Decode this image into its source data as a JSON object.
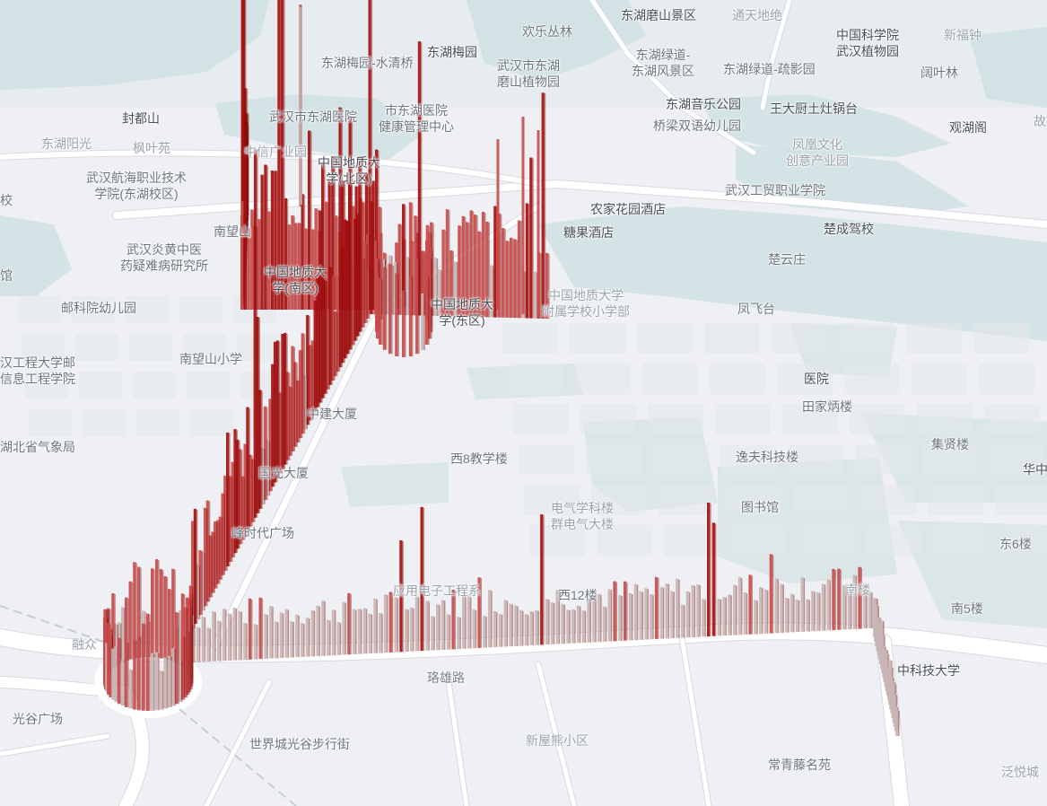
{
  "map": {
    "theme": {
      "land": "#eef0f3",
      "water": "#cfe0e2",
      "green": "#d8e6e4",
      "block": "#e3e7ec",
      "road": "#ffffff",
      "road_edge": "#d6dbe1",
      "bar_dark": "#a80f0f",
      "bar_mid": "#c94a4a",
      "bar_light": "#c8b6b6"
    },
    "labels": [
      {
        "id": "donghu-moshan",
        "text": "东湖磨山景区",
        "style": "dark"
      },
      {
        "id": "tongtian",
        "text": "通天地绝",
        "style": "light"
      },
      {
        "id": "huanle",
        "text": "欢乐丛林",
        "style": "normal"
      },
      {
        "id": "kexueyuan",
        "text": "中国科学院\n武汉植物园",
        "style": "dark"
      },
      {
        "id": "xinfu",
        "text": "新福钟",
        "style": "light"
      },
      {
        "id": "donghu-meiyuan",
        "text": "东湖梅园",
        "style": "dark"
      },
      {
        "id": "meiyuan-shuiqing",
        "text": "东湖梅园-水清桥",
        "style": "normal"
      },
      {
        "id": "moshan-zhiwu",
        "text": "武汉市东湖\n磨山植物园",
        "style": "normal"
      },
      {
        "id": "lvdao-fengjing",
        "text": "东湖绿道-\n东湖风景区",
        "style": "normal"
      },
      {
        "id": "lvdao-shuying",
        "text": "东湖绿道-疏影园",
        "style": "normal"
      },
      {
        "id": "kuoye",
        "text": "阔叶林",
        "style": "normal"
      },
      {
        "id": "fengdushan",
        "text": "封都山",
        "style": "dark"
      },
      {
        "id": "donghu-hospital",
        "text": "武汉市东湖医院",
        "style": "normal"
      },
      {
        "id": "jiankang",
        "text": "市东湖医院\n健康管理中心",
        "style": "normal"
      },
      {
        "id": "yinyue",
        "text": "东湖音乐公园",
        "style": "dark"
      },
      {
        "id": "wangdachu",
        "text": "王大厨土灶锅台",
        "style": "dark"
      },
      {
        "id": "guanhu",
        "text": "观湖阁",
        "style": "dark"
      },
      {
        "id": "gu",
        "text": "故",
        "style": "light"
      },
      {
        "id": "qiaoliang",
        "text": "桥梁双语幼儿园",
        "style": "normal"
      },
      {
        "id": "yangguang",
        "text": "东湖阳光",
        "style": "light"
      },
      {
        "id": "fengye",
        "text": "枫叶苑",
        "style": "light"
      },
      {
        "id": "zhongxin",
        "text": "中信广业园",
        "style": "light"
      },
      {
        "id": "dizhi-north",
        "text": "中国地质大\n学(北区)",
        "style": "dark"
      },
      {
        "id": "fenghuang",
        "text": "凤凰文化\n创意产业园",
        "style": "light"
      },
      {
        "id": "hanghai",
        "text": "武汉航海职业技术\n学院(东湖校区)",
        "style": "normal"
      },
      {
        "id": "xiao",
        "text": "校",
        "style": "normal"
      },
      {
        "id": "gongmao",
        "text": "武汉工贸职业学院",
        "style": "normal"
      },
      {
        "id": "nongjia",
        "text": "农家花园酒店",
        "style": "dark"
      },
      {
        "id": "nanwang-top",
        "text": "南望山",
        "style": "normal"
      },
      {
        "id": "tangguo",
        "text": "糖果酒店",
        "style": "dark"
      },
      {
        "id": "chucheng",
        "text": "楚成驾校",
        "style": "dark"
      },
      {
        "id": "yanhuang",
        "text": "武汉炎黄中医\n药疑难病研究所",
        "style": "normal"
      },
      {
        "id": "guan",
        "text": "馆",
        "style": "normal"
      },
      {
        "id": "chuyun",
        "text": "楚云庄",
        "style": "normal"
      },
      {
        "id": "dizhi-south",
        "text": "中国地质大\n学(南区)",
        "style": "dark"
      },
      {
        "id": "dizhi-east",
        "text": "中国地质大\n学(东区)",
        "style": "dark"
      },
      {
        "id": "dizhi-fushu",
        "text": "中国地质大学\n附属学校小学部",
        "style": "light"
      },
      {
        "id": "youke",
        "text": "邮科院幼儿园",
        "style": "normal"
      },
      {
        "id": "fengfei",
        "text": "凤飞台",
        "style": "normal"
      },
      {
        "id": "nanwang-xiaoxue",
        "text": "南望山小学",
        "style": "normal"
      },
      {
        "id": "hg-youdian",
        "text": "汉工程大学邮\n信息工程学院",
        "style": "normal"
      },
      {
        "id": "yiyuan",
        "text": "医院",
        "style": "dark"
      },
      {
        "id": "tianjia",
        "text": "田家炳楼",
        "style": "normal"
      },
      {
        "id": "zhongjian",
        "text": "中建大厦",
        "style": "normal"
      },
      {
        "id": "qixiang",
        "text": "湖北省气象局",
        "style": "normal"
      },
      {
        "id": "jixian",
        "text": "集贤楼",
        "style": "normal"
      },
      {
        "id": "xi8",
        "text": "西8教学楼",
        "style": "normal"
      },
      {
        "id": "yifu",
        "text": "逸夫科技楼",
        "style": "normal"
      },
      {
        "id": "hua",
        "text": "华中",
        "style": "dark"
      },
      {
        "id": "guoguang",
        "text": "国光大厦",
        "style": "normal"
      },
      {
        "id": "dianqi",
        "text": "电气学科楼\n群电气大楼",
        "style": "light"
      },
      {
        "id": "tushu",
        "text": "图书馆",
        "style": "normal"
      },
      {
        "id": "shidai",
        "text": "峰时代广场",
        "style": "normal"
      },
      {
        "id": "dong6",
        "text": "东6楼",
        "style": "normal"
      },
      {
        "id": "yingyong",
        "text": "应用电子工程系",
        "style": "light"
      },
      {
        "id": "xi12",
        "text": "西12楼",
        "style": "normal"
      },
      {
        "id": "nanji",
        "text": "南楼",
        "style": "light"
      },
      {
        "id": "nan5",
        "text": "南5楼",
        "style": "normal"
      },
      {
        "id": "rong",
        "text": "融众",
        "style": "light"
      },
      {
        "id": "huake",
        "text": "中科技大学",
        "style": "dark"
      },
      {
        "id": "luoxiong",
        "text": "珞雄路",
        "style": "road"
      },
      {
        "id": "guanggu",
        "text": "光谷广场",
        "style": "normal"
      },
      {
        "id": "shijiecheng",
        "text": "世界城光谷步行街",
        "style": "normal"
      },
      {
        "id": "xinwuxiong",
        "text": "新屋熊小区",
        "style": "light"
      },
      {
        "id": "changqing",
        "text": "常青藤名苑",
        "style": "normal"
      },
      {
        "id": "fanyue",
        "text": "泛悦城",
        "style": "light"
      }
    ]
  }
}
